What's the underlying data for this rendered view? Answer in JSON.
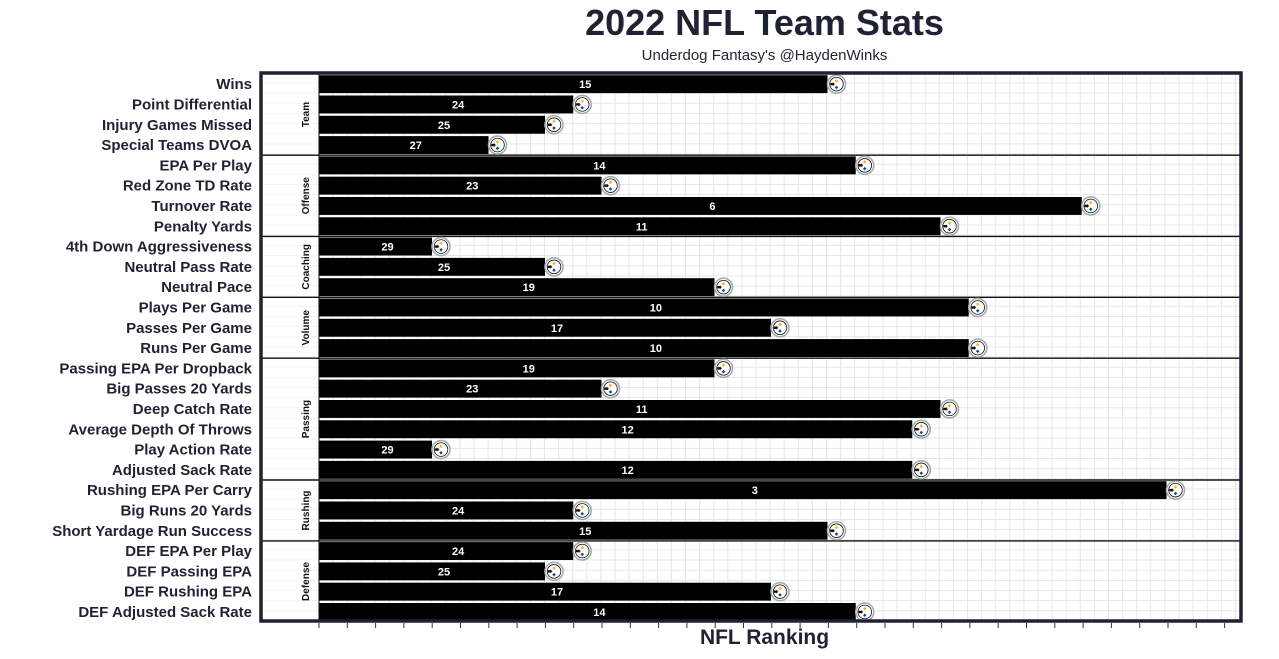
{
  "colors": {
    "bar": "#000000",
    "frame": "#1f2233",
    "grid": "#e6e6e6",
    "text": "#1f2233",
    "logo_gold": "#ffb612",
    "logo_red": "#c60c30",
    "logo_blue": "#00539b",
    "logo_ring": "#a5acaf"
  },
  "bar_marker_icon": "pittsburgh-steelers-logo-icon",
  "chart_data": {
    "type": "bar",
    "orientation": "horizontal",
    "title": "2022 NFL Team Stats",
    "subtitle": "Underdog Fantasy's @HaydenWinks",
    "xlabel": "NFL Ranking",
    "x_reversed": true,
    "xlim": [
      32,
      1
    ],
    "grid": true,
    "groups": [
      {
        "name": "Team",
        "metrics": [
          {
            "label": "Wins",
            "rank": 15
          },
          {
            "label": "Point Differential",
            "rank": 24
          },
          {
            "label": "Injury Games Missed",
            "rank": 25
          },
          {
            "label": "Special Teams DVOA",
            "rank": 27
          }
        ]
      },
      {
        "name": "Offense",
        "metrics": [
          {
            "label": "EPA Per Play",
            "rank": 14
          },
          {
            "label": "Red Zone TD Rate",
            "rank": 23
          },
          {
            "label": "Turnover Rate",
            "rank": 6
          },
          {
            "label": "Penalty Yards",
            "rank": 11
          }
        ]
      },
      {
        "name": "Coaching",
        "metrics": [
          {
            "label": "4th Down Aggressiveness",
            "rank": 29
          },
          {
            "label": "Neutral Pass Rate",
            "rank": 25
          },
          {
            "label": "Neutral Pace",
            "rank": 19
          }
        ]
      },
      {
        "name": "Volume",
        "metrics": [
          {
            "label": "Plays Per Game",
            "rank": 10
          },
          {
            "label": "Passes Per Game",
            "rank": 17
          },
          {
            "label": "Runs Per Game",
            "rank": 10
          }
        ]
      },
      {
        "name": "Passing",
        "metrics": [
          {
            "label": "Passing EPA Per Dropback",
            "rank": 19
          },
          {
            "label": "Big Passes 20 Yards",
            "rank": 23
          },
          {
            "label": "Deep Catch Rate",
            "rank": 11
          },
          {
            "label": "Average Depth Of Throws",
            "rank": 12
          },
          {
            "label": "Play Action Rate",
            "rank": 29
          },
          {
            "label": "Adjusted Sack Rate",
            "rank": 12
          }
        ]
      },
      {
        "name": "Rushing",
        "metrics": [
          {
            "label": "Rushing EPA Per Carry",
            "rank": 3
          },
          {
            "label": "Big Runs 20 Yards",
            "rank": 24
          },
          {
            "label": "Short Yardage Run Success",
            "rank": 15
          }
        ]
      },
      {
        "name": "Defense",
        "metrics": [
          {
            "label": "DEF EPA Per Play",
            "rank": 24
          },
          {
            "label": "DEF Passing EPA",
            "rank": 25
          },
          {
            "label": "DEF Rushing EPA",
            "rank": 17
          },
          {
            "label": "DEF Adjusted Sack Rate",
            "rank": 14
          }
        ]
      }
    ]
  }
}
